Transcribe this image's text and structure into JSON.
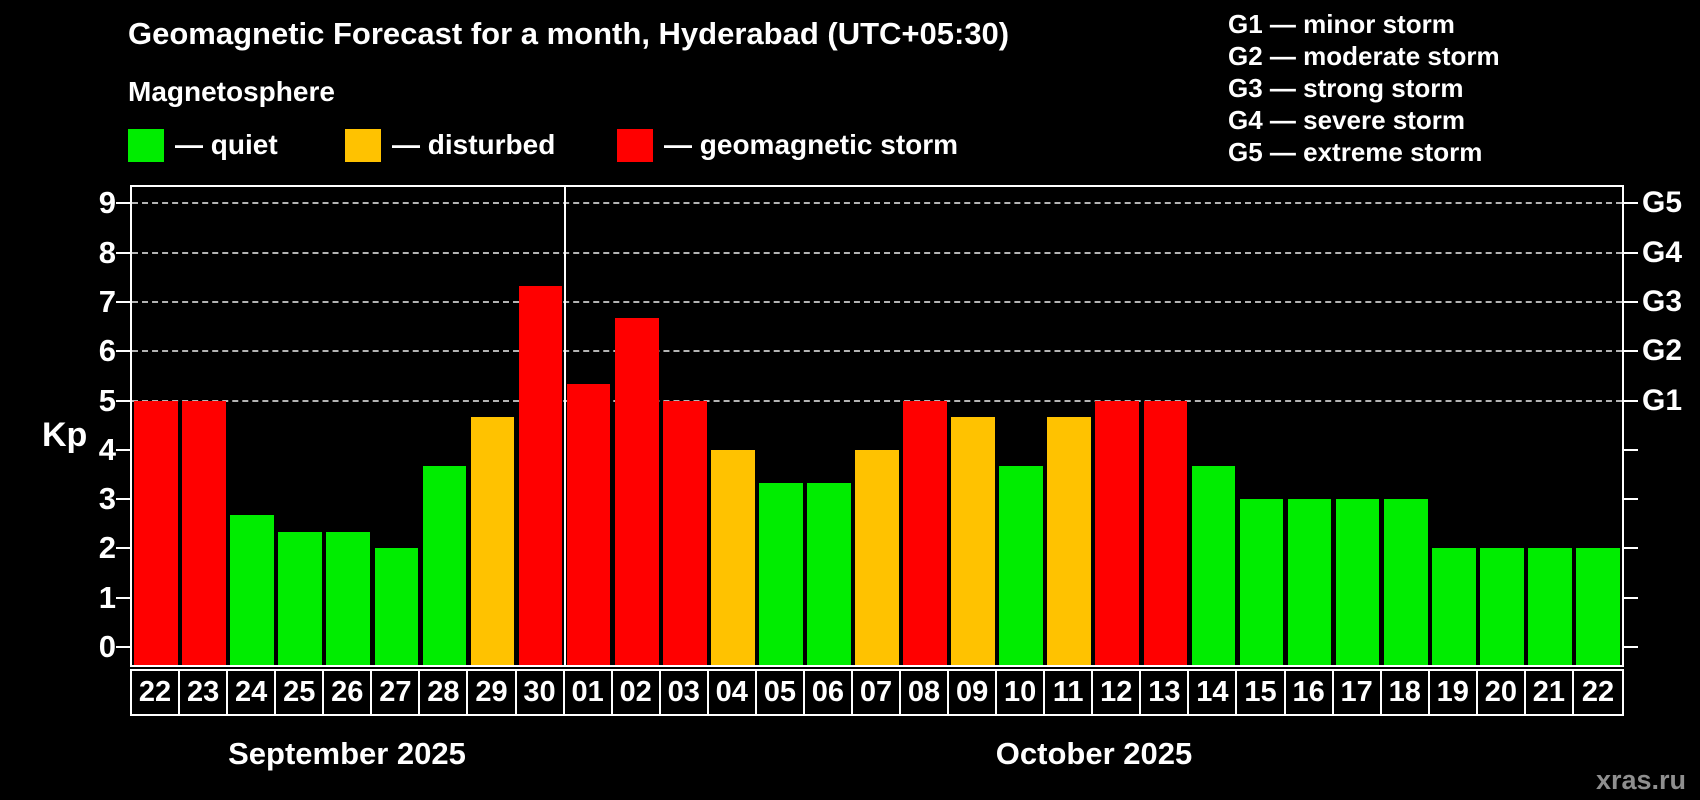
{
  "title": "Geomagnetic Forecast for a month, Hyderabad (UTC+05:30)",
  "subtitle": "Magnetosphere",
  "watermark": "xras.ru",
  "chart_data": {
    "type": "bar",
    "title": "Geomagnetic Forecast for a month, Hyderabad (UTC+05:30)",
    "ylabel": "Kp",
    "ylim": [
      0,
      9
    ],
    "yticks": [
      0,
      1,
      2,
      3,
      4,
      5,
      6,
      7,
      8,
      9
    ],
    "gridlines_at_kp": [
      5,
      6,
      7,
      8,
      9
    ],
    "grid": "dashed horizontal at storm levels only",
    "legend_position": "top-left",
    "legend": [
      {
        "status": "quiet",
        "label": "— quiet"
      },
      {
        "status": "disturbed",
        "label": "— disturbed"
      },
      {
        "status": "storm",
        "label": "— geomagnetic storm"
      }
    ],
    "storm_scale_legend": [
      {
        "label": "G1 — minor storm"
      },
      {
        "label": "G2 — moderate storm"
      },
      {
        "label": "G3 — strong storm"
      },
      {
        "label": "G4 — severe storm"
      },
      {
        "label": "G5 — extreme storm"
      }
    ],
    "right_axis": [
      {
        "kp": 5,
        "label": "G1"
      },
      {
        "kp": 6,
        "label": "G2"
      },
      {
        "kp": 7,
        "label": "G3"
      },
      {
        "kp": 8,
        "label": "G4"
      },
      {
        "kp": 9,
        "label": "G5"
      }
    ],
    "status_colors": {
      "quiet": "#00ED00",
      "disturbed": "#FFC200",
      "storm": "#FF0000"
    },
    "months": [
      {
        "label": "September 2025",
        "key": "sep",
        "days": [
          {
            "day": "22",
            "kp": 5,
            "status": "storm"
          },
          {
            "day": "23",
            "kp": 5,
            "status": "storm"
          },
          {
            "day": "24",
            "kp": 2.67,
            "status": "quiet"
          },
          {
            "day": "25",
            "kp": 2.33,
            "status": "quiet"
          },
          {
            "day": "26",
            "kp": 2.33,
            "status": "quiet"
          },
          {
            "day": "27",
            "kp": 2,
            "status": "quiet"
          },
          {
            "day": "28",
            "kp": 3.67,
            "status": "quiet"
          },
          {
            "day": "29",
            "kp": 4.67,
            "status": "disturbed"
          },
          {
            "day": "30",
            "kp": 7.33,
            "status": "storm"
          }
        ]
      },
      {
        "label": "October 2025",
        "key": "oct",
        "days": [
          {
            "day": "01",
            "kp": 5.33,
            "status": "storm"
          },
          {
            "day": "02",
            "kp": 6.67,
            "status": "storm"
          },
          {
            "day": "03",
            "kp": 5,
            "status": "storm"
          },
          {
            "day": "04",
            "kp": 4,
            "status": "disturbed"
          },
          {
            "day": "05",
            "kp": 3.33,
            "status": "quiet"
          },
          {
            "day": "06",
            "kp": 3.33,
            "status": "quiet"
          },
          {
            "day": "07",
            "kp": 4,
            "status": "disturbed"
          },
          {
            "day": "08",
            "kp": 5,
            "status": "storm"
          },
          {
            "day": "09",
            "kp": 4.67,
            "status": "disturbed"
          },
          {
            "day": "10",
            "kp": 3.67,
            "status": "quiet"
          },
          {
            "day": "11",
            "kp": 4.67,
            "status": "disturbed"
          },
          {
            "day": "12",
            "kp": 5,
            "status": "storm"
          },
          {
            "day": "13",
            "kp": 5,
            "status": "storm"
          },
          {
            "day": "14",
            "kp": 3.67,
            "status": "quiet"
          },
          {
            "day": "15",
            "kp": 3,
            "status": "quiet"
          },
          {
            "day": "16",
            "kp": 3,
            "status": "quiet"
          },
          {
            "day": "17",
            "kp": 3,
            "status": "quiet"
          },
          {
            "day": "18",
            "kp": 3,
            "status": "quiet"
          },
          {
            "day": "19",
            "kp": 2,
            "status": "quiet"
          },
          {
            "day": "20",
            "kp": 2,
            "status": "quiet"
          },
          {
            "day": "21",
            "kp": 2,
            "status": "quiet"
          },
          {
            "day": "22",
            "kp": 2,
            "status": "quiet"
          }
        ]
      }
    ]
  }
}
